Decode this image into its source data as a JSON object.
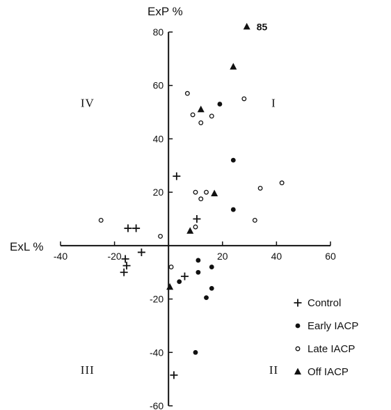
{
  "chart_data": {
    "type": "scatter",
    "title": "",
    "xlabel": "ExL %",
    "ylabel": "ExP %",
    "xlim": [
      -40,
      60
    ],
    "ylim": [
      -60,
      80
    ],
    "x_ticks": [
      -40,
      -20,
      20,
      40,
      60
    ],
    "y_ticks": [
      80,
      60,
      40,
      20,
      -20,
      -40,
      -60
    ],
    "grid": false,
    "legend_position": "bottom-right",
    "quadrant_labels": [
      {
        "label": "I",
        "x": 39,
        "y": 52
      },
      {
        "label": "II",
        "x": 39,
        "y": -48
      },
      {
        "label": "III",
        "x": -30,
        "y": -48
      },
      {
        "label": "IV",
        "x": -30,
        "y": 52
      }
    ],
    "annotations": [
      {
        "text": "85",
        "x": 29,
        "y": 82
      }
    ],
    "series": [
      {
        "name": "Control",
        "marker": "plus",
        "points": [
          [
            -15,
            6.5
          ],
          [
            -12,
            6.5
          ],
          [
            -16,
            -5
          ],
          [
            -15.5,
            -7.5
          ],
          [
            -16.5,
            -10
          ],
          [
            -10,
            -2.5
          ],
          [
            3,
            26
          ],
          [
            10.5,
            10
          ],
          [
            6,
            -11.5
          ],
          [
            2,
            -48.5
          ]
        ]
      },
      {
        "name": "Early IACP",
        "marker": "filled-circle",
        "points": [
          [
            19,
            53
          ],
          [
            24,
            32
          ],
          [
            24,
            13.5
          ],
          [
            11,
            -5.5
          ],
          [
            16,
            -8
          ],
          [
            11,
            -10
          ],
          [
            16,
            -16
          ],
          [
            14,
            -19.5
          ],
          [
            10,
            -40
          ],
          [
            4,
            -13.5
          ]
        ]
      },
      {
        "name": "Late IACP",
        "marker": "open-circle",
        "points": [
          [
            7,
            57
          ],
          [
            9,
            49
          ],
          [
            12,
            46
          ],
          [
            16,
            48.5
          ],
          [
            28,
            55
          ],
          [
            10,
            20
          ],
          [
            14,
            20
          ],
          [
            12,
            17.5
          ],
          [
            34,
            21.5
          ],
          [
            42,
            23.5
          ],
          [
            32,
            9.5
          ],
          [
            10,
            7
          ],
          [
            -25,
            9.5
          ],
          [
            -3,
            3.5
          ],
          [
            1,
            -8
          ]
        ]
      },
      {
        "name": "Off IACP",
        "marker": "filled-triangle",
        "points": [
          [
            29,
            82
          ],
          [
            24,
            67
          ],
          [
            12,
            51
          ],
          [
            17,
            19.5
          ],
          [
            8,
            5.5
          ],
          [
            0.5,
            -15.5
          ]
        ]
      }
    ]
  }
}
